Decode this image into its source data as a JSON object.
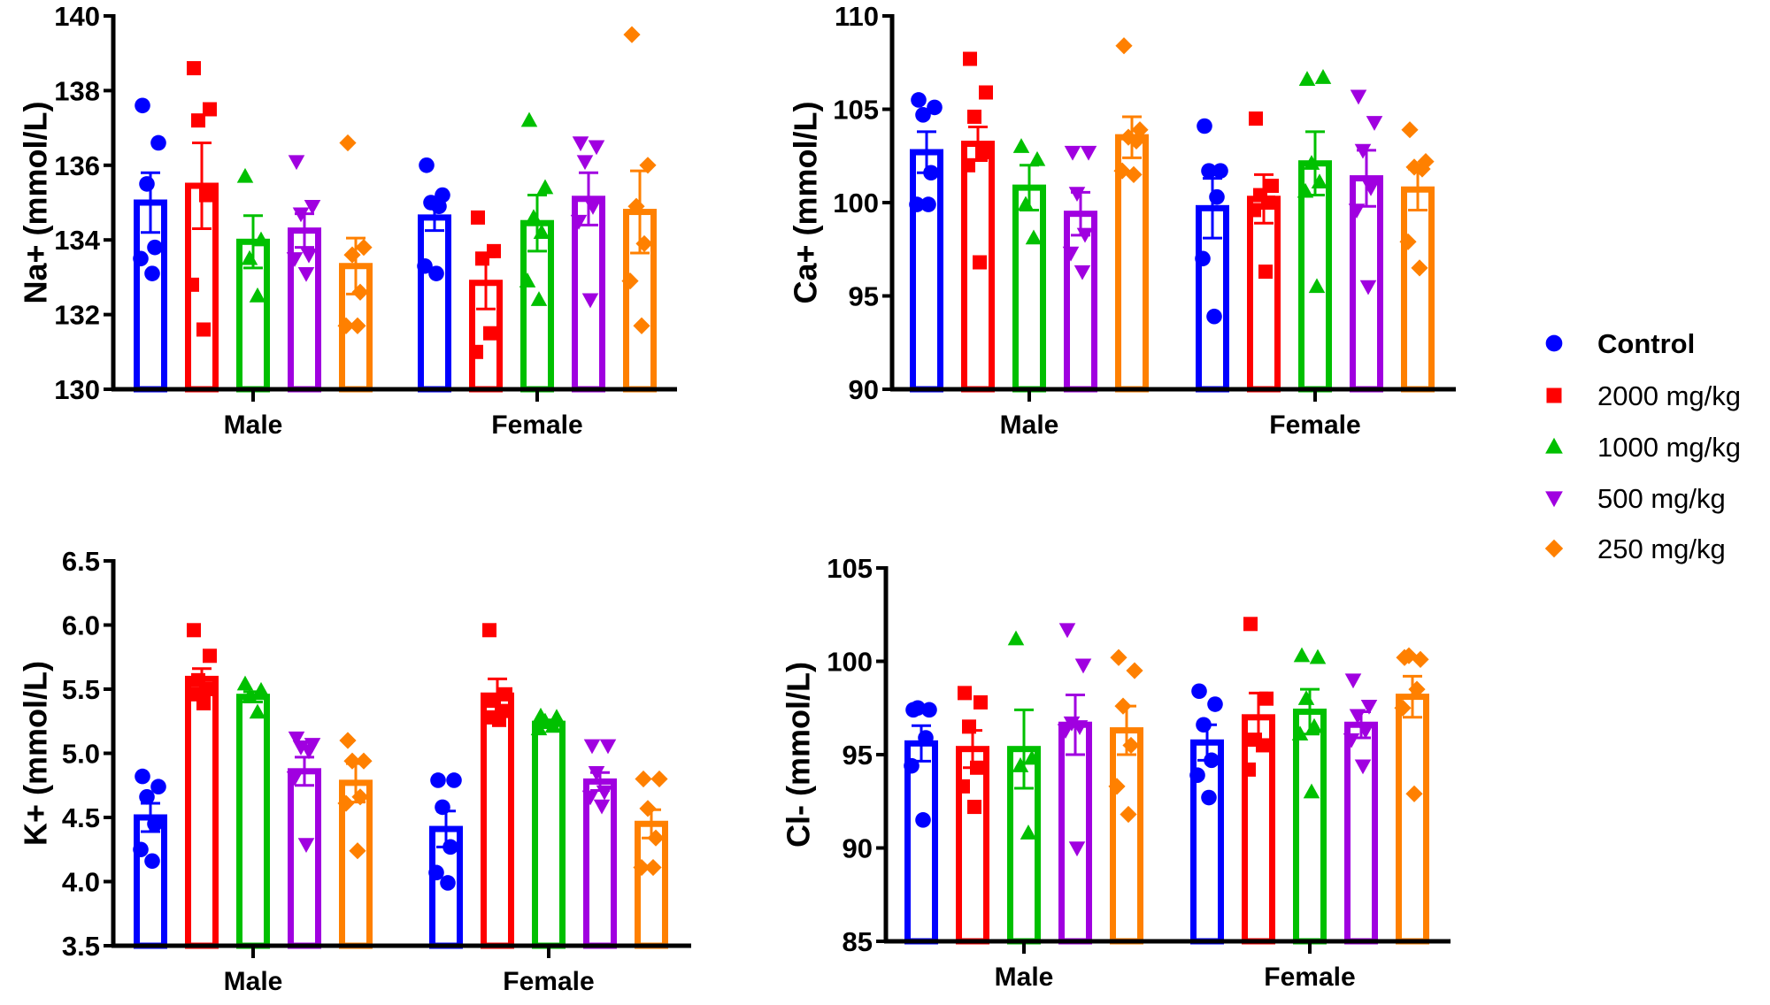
{
  "legend": [
    {
      "label": "Control",
      "color": "#0000ff",
      "marker": "circle",
      "bold": true
    },
    {
      "label": "2000 mg/kg",
      "color": "#ff0000",
      "marker": "square"
    },
    {
      "label": "1000 mg/kg",
      "color": "#00c000",
      "marker": "triangle-up"
    },
    {
      "label": "500 mg/kg",
      "color": "#a000e0",
      "marker": "triangle-down"
    },
    {
      "label": "250 mg/kg",
      "color": "#ff8000",
      "marker": "diamond"
    }
  ],
  "chart_data": [
    {
      "type": "bar",
      "ylabel": "Na+ (mmol/L)",
      "ylim": [
        130,
        140
      ],
      "yticks": [
        "130",
        "132",
        "134",
        "136",
        "138",
        "140"
      ],
      "categories": [
        "Male",
        "Female"
      ],
      "series": [
        {
          "name": "Control",
          "mean": [
            135.0,
            134.6
          ],
          "sem": [
            0.8,
            0.35
          ],
          "points": [
            [
              137.6,
              136.6,
              135.5,
              133.8,
              133.5,
              133.1
            ],
            [
              136.0,
              135.2,
              135.0,
              134.9,
              133.3,
              133.1
            ]
          ]
        },
        {
          "name": "2000 mg/kg",
          "mean": [
            135.45,
            132.85
          ],
          "sem": [
            1.15,
            0.7
          ],
          "points": [
            [
              138.6,
              137.5,
              137.2,
              135.2,
              132.8,
              131.6
            ],
            [
              134.6,
              133.7,
              133.5,
              131.5,
              131.0
            ]
          ]
        },
        {
          "name": "1000 mg/kg",
          "mean": [
            133.95,
            134.45
          ],
          "sem": [
            0.7,
            0.75
          ],
          "points": [
            [
              135.7,
              134.0,
              133.5,
              132.5
            ],
            [
              137.2,
              135.4,
              134.6,
              134.2,
              132.9,
              132.4
            ]
          ]
        },
        {
          "name": "500 mg/kg",
          "mean": [
            134.25,
            135.1
          ],
          "sem": [
            0.45,
            0.7
          ],
          "points": [
            [
              136.1,
              134.9,
              134.7,
              133.6,
              133.5,
              133.1
            ],
            [
              136.6,
              136.5,
              136.1,
              134.9,
              134.5,
              132.4
            ]
          ]
        },
        {
          "name": "250 mg/kg",
          "mean": [
            133.3,
            134.75
          ],
          "sem": [
            0.75,
            1.1
          ],
          "points": [
            [
              136.6,
              133.8,
              133.6,
              132.6,
              131.7,
              131.7
            ],
            [
              139.5,
              136.0,
              134.9,
              133.9,
              132.9,
              131.7
            ]
          ]
        }
      ]
    },
    {
      "type": "bar",
      "ylabel": "Ca+ (mmol/L)",
      "ylim": [
        90,
        110
      ],
      "yticks": [
        "90",
        "95",
        "100",
        "105",
        "110"
      ],
      "categories": [
        "Male",
        "Female"
      ],
      "series": [
        {
          "name": "Control",
          "mean": [
            102.7,
            99.7
          ],
          "sem": [
            1.1,
            1.6
          ],
          "points": [
            [
              105.5,
              105.1,
              104.7,
              101.6,
              99.9,
              99.9
            ],
            [
              104.1,
              101.7,
              101.7,
              100.3,
              97.0,
              93.9
            ]
          ]
        },
        {
          "name": "2000 mg/kg",
          "mean": [
            103.15,
            100.2
          ],
          "sem": [
            0.9,
            1.3
          ],
          "points": [
            [
              107.7,
              105.9,
              104.6,
              102.7,
              102.0,
              96.8
            ],
            [
              104.5,
              100.9,
              100.4,
              100.0,
              99.6,
              96.3
            ]
          ]
        },
        {
          "name": "1000 mg/kg",
          "mean": [
            100.8,
            102.1
          ],
          "sem": [
            1.2,
            1.7
          ],
          "points": [
            [
              103.0,
              102.3,
              99.9,
              98.1
            ],
            [
              106.6,
              106.7,
              102.1,
              101.1,
              100.6,
              95.5
            ]
          ]
        },
        {
          "name": "500 mg/kg",
          "mean": [
            99.4,
            101.3
          ],
          "sem": [
            1.15,
            1.5
          ],
          "points": [
            [
              102.7,
              102.7,
              100.5,
              98.3,
              97.3,
              96.3
            ],
            [
              105.7,
              104.3,
              102.8,
              100.8,
              99.6,
              95.5
            ]
          ]
        },
        {
          "name": "250 mg/kg",
          "mean": [
            103.5,
            100.7
          ],
          "sem": [
            1.1,
            1.1
          ],
          "points": [
            [
              108.4,
              103.9,
              103.5,
              103.3,
              101.7,
              101.5
            ],
            [
              103.9,
              102.2,
              101.9,
              101.8,
              97.9,
              96.5
            ]
          ]
        }
      ]
    },
    {
      "type": "bar",
      "ylabel": "K+ (mmol/L)",
      "ylim": [
        3.5,
        6.5
      ],
      "yticks": [
        "3.5",
        "4.0",
        "4.5",
        "5.0",
        "5.5",
        "6.0",
        "6.5"
      ],
      "categories": [
        "Male",
        "Female"
      ],
      "series": [
        {
          "name": "Control",
          "mean": [
            4.5,
            4.41
          ],
          "sem": [
            0.11,
            0.14
          ],
          "points": [
            [
              4.82,
              4.74,
              4.66,
              4.45,
              4.25,
              4.16
            ],
            [
              4.79,
              4.79,
              4.58,
              4.27,
              4.07,
              3.99
            ]
          ]
        },
        {
          "name": "2000 mg/kg",
          "mean": [
            5.58,
            5.45
          ],
          "sem": [
            0.08,
            0.13
          ],
          "points": [
            [
              5.96,
              5.76,
              5.57,
              5.5,
              5.46,
              5.39
            ],
            [
              5.96,
              5.46,
              5.41,
              5.33,
              5.28,
              5.26
            ]
          ]
        },
        {
          "name": "1000 mg/kg",
          "mean": [
            5.44,
            5.23
          ],
          "sem": [
            0.04,
            0.03
          ],
          "points": [
            [
              5.54,
              5.49,
              5.44,
              5.32
            ],
            [
              5.29,
              5.28,
              5.25,
              5.21,
              5.19
            ]
          ]
        },
        {
          "name": "500 mg/kg",
          "mean": [
            4.86,
            4.78
          ],
          "sem": [
            0.11,
            0.07
          ],
          "points": [
            [
              5.12,
              5.07,
              5.05,
              5.02,
              4.81,
              4.29
            ],
            [
              5.06,
              5.06,
              4.85,
              4.7,
              4.66,
              4.59
            ]
          ]
        },
        {
          "name": "250 mg/kg",
          "mean": [
            4.77,
            4.45
          ],
          "sem": [
            0.15,
            0.11
          ],
          "points": [
            [
              5.1,
              4.94,
              4.94,
              4.66,
              4.61,
              4.24
            ],
            [
              4.8,
              4.8,
              4.57,
              4.34,
              4.11,
              4.11
            ]
          ]
        }
      ]
    },
    {
      "type": "bar",
      "ylabel": "Cl- (mmol/L)",
      "ylim": [
        85,
        105
      ],
      "yticks": [
        "85",
        "90",
        "95",
        "100",
        "105"
      ],
      "categories": [
        "Male",
        "Female"
      ],
      "series": [
        {
          "name": "Control",
          "mean": [
            95.6,
            95.65
          ],
          "sem": [
            0.95,
            0.95
          ],
          "points": [
            [
              97.4,
              97.4,
              97.5,
              95.9,
              94.4,
              91.5
            ],
            [
              98.4,
              97.7,
              96.6,
              94.7,
              93.9,
              92.7
            ]
          ]
        },
        {
          "name": "2000 mg/kg",
          "mean": [
            95.3,
            97.0
          ],
          "sem": [
            1.0,
            1.3
          ],
          "points": [
            [
              98.3,
              97.8,
              96.5,
              94.3,
              93.3,
              92.2
            ],
            [
              102.0,
              98.0,
              95.8,
              95.5,
              94.2
            ]
          ]
        },
        {
          "name": "1000 mg/kg",
          "mean": [
            95.3,
            97.3
          ],
          "sem": [
            2.1,
            1.2
          ],
          "points": [
            [
              101.2,
              94.8,
              94.4,
              90.8
            ],
            [
              100.3,
              100.2,
              98.0,
              96.5,
              96.1,
              93.0
            ]
          ]
        },
        {
          "name": "500 mg/kg",
          "mean": [
            96.6,
            96.6
          ],
          "sem": [
            1.6,
            0.7
          ],
          "points": [
            [
              101.7,
              99.8,
              96.7,
              96.5,
              96.3,
              90.0
            ],
            [
              99.0,
              97.6,
              97.1,
              96.3,
              95.8,
              94.4
            ]
          ]
        },
        {
          "name": "250 mg/kg",
          "mean": [
            96.3,
            98.1
          ],
          "sem": [
            1.3,
            1.1
          ],
          "points": [
            [
              100.2,
              99.5,
              97.6,
              95.5,
              93.3,
              91.8
            ],
            [
              100.2,
              100.1,
              100.3,
              98.5,
              97.5,
              92.9
            ]
          ]
        }
      ]
    }
  ]
}
